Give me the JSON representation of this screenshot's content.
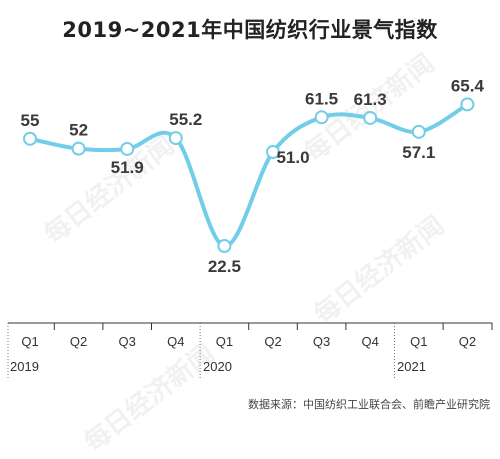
{
  "chart_data": {
    "type": "line",
    "title": "2019~2021年中国纺织行业景气指数",
    "categories": [
      "Q1",
      "Q2",
      "Q3",
      "Q4",
      "Q1",
      "Q2",
      "Q3",
      "Q4",
      "Q1",
      "Q2"
    ],
    "years": [
      "2019",
      "2020",
      "2021"
    ],
    "series": [
      {
        "values": [
          55,
          52,
          51.9,
          55.2,
          22.5,
          51.0,
          61.5,
          61.3,
          57.1,
          65.4
        ]
      }
    ],
    "data_labels": [
      "55",
      "52",
      "51.9",
      "55.2",
      "22.5",
      "51.0",
      "61.5",
      "61.3",
      "57.1",
      "65.4"
    ],
    "grid": false,
    "line_color": "#72cde8"
  },
  "source": "数据来源：中国纺织工业联合会、前瞻产业研究院",
  "watermark": "每日经济新闻"
}
